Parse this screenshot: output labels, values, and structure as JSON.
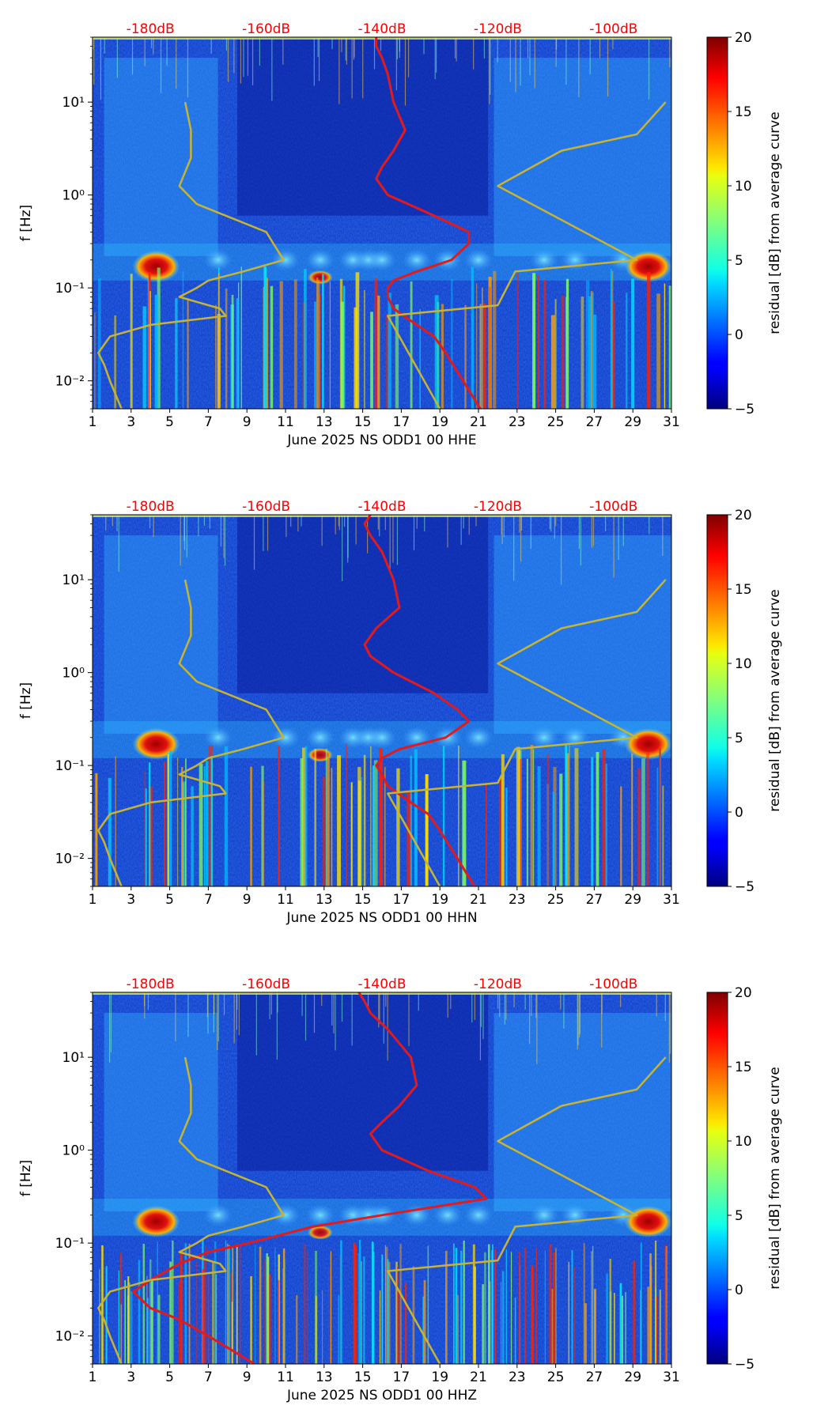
{
  "figure": {
    "colorbar": {
      "label": "residual [dB] from average curve",
      "range": [
        -5,
        20
      ],
      "ticks": [
        "20",
        "15",
        "10",
        "5",
        "0",
        "−5"
      ]
    },
    "top_axis_labels": [
      "-180dB",
      "-160dB",
      "-140dB",
      "-120dB",
      "-100dB"
    ],
    "colors": {
      "top_label": "#ff0000",
      "median_curve": "#e31a1c",
      "noise_model": "#c8b432",
      "background": "#1040d0"
    }
  },
  "chart_data": [
    {
      "type": "heatmap",
      "title": "",
      "xlabel": "June 2025 NS ODD1 00 HHE",
      "ylabel": "f [Hz]",
      "x_ticks": [
        "1",
        "3",
        "5",
        "7",
        "9",
        "11",
        "13",
        "15",
        "17",
        "19",
        "21",
        "23",
        "25",
        "27",
        "29",
        "31"
      ],
      "y_ticks": [
        "10⁻²",
        "10⁻¹",
        "10⁰",
        "10¹"
      ],
      "xlim": [
        1,
        31
      ],
      "ylim": [
        0.005,
        50
      ],
      "top_axis": {
        "label_range_db": [
          -190,
          -90
        ],
        "labels": [
          "-180dB",
          "-160dB",
          "-140dB",
          "-120dB",
          "-100dB"
        ]
      },
      "series": [
        {
          "name": "median PSD (dB)",
          "y_hz": [
            50,
            40,
            30,
            20,
            10,
            5,
            3,
            2,
            1.5,
            1,
            0.6,
            0.4,
            0.3,
            0.2,
            0.15,
            0.12,
            0.1,
            0.08,
            0.06,
            0.04,
            0.03,
            0.02,
            0.01,
            0.005
          ],
          "x": [
            -141,
            -141,
            -140,
            -139,
            -138,
            -136,
            -138,
            -140,
            -141,
            -139,
            -131,
            -125,
            -125,
            -128,
            -134,
            -138,
            -139,
            -139,
            -138,
            -134,
            -131,
            -129,
            -126,
            -123
          ]
        },
        {
          "name": "noise model (dB)",
          "y_hz": [
            10,
            5,
            2.5,
            1.25,
            0.8,
            0.4,
            0.2,
            0.15,
            0.12,
            0.1,
            0.08,
            0.06,
            0.05,
            0.04,
            0.03,
            0.02,
            0.015,
            0.01,
            0.005
          ],
          "x": [
            -174,
            -173,
            -173,
            -175,
            -172,
            -160,
            -157,
            -164,
            -170,
            -172,
            -175,
            -168,
            -167,
            -180,
            -187,
            -189,
            -188,
            -187,
            -185
          ]
        },
        {
          "name": "noise model high (dB)",
          "y_hz": [
            10,
            4.5,
            3,
            1.25,
            0.2,
            0.15,
            0.065,
            0.05,
            0.005
          ],
          "x": [
            -91,
            -96,
            -109,
            -120,
            -96,
            -117,
            -120,
            -139,
            -130
          ]
        }
      ]
    },
    {
      "type": "heatmap",
      "title": "",
      "xlabel": "June 2025 NS ODD1 00 HHN",
      "ylabel": "f [Hz]",
      "x_ticks": [
        "1",
        "3",
        "5",
        "7",
        "9",
        "11",
        "13",
        "15",
        "17",
        "19",
        "21",
        "23",
        "25",
        "27",
        "29",
        "31"
      ],
      "y_ticks": [
        "10⁻²",
        "10⁻¹",
        "10⁰",
        "10¹"
      ],
      "xlim": [
        1,
        31
      ],
      "ylim": [
        0.005,
        50
      ],
      "top_axis": {
        "label_range_db": [
          -190,
          -90
        ],
        "labels": [
          "-180dB",
          "-160dB",
          "-140dB",
          "-120dB",
          "-100dB"
        ]
      },
      "series": [
        {
          "name": "median PSD (dB)",
          "y_hz": [
            50,
            40,
            30,
            20,
            10,
            5,
            3,
            2,
            1.5,
            1,
            0.6,
            0.4,
            0.3,
            0.2,
            0.15,
            0.12,
            0.1,
            0.08,
            0.06,
            0.04,
            0.03,
            0.02,
            0.01,
            0.005
          ],
          "x": [
            -142,
            -143,
            -142,
            -140,
            -138,
            -137,
            -141,
            -143,
            -142,
            -138,
            -131,
            -127,
            -125,
            -129,
            -137,
            -140,
            -141,
            -140,
            -139,
            -135,
            -132,
            -130,
            -127,
            -124
          ]
        },
        {
          "name": "noise model (dB)",
          "y_hz": [
            10,
            5,
            2.5,
            1.25,
            0.8,
            0.4,
            0.2,
            0.15,
            0.12,
            0.1,
            0.08,
            0.06,
            0.05,
            0.04,
            0.03,
            0.02,
            0.015,
            0.01,
            0.005
          ],
          "x": [
            -174,
            -173,
            -173,
            -175,
            -172,
            -160,
            -157,
            -164,
            -170,
            -172,
            -175,
            -168,
            -167,
            -180,
            -187,
            -189,
            -188,
            -187,
            -185
          ]
        },
        {
          "name": "noise model high (dB)",
          "y_hz": [
            10,
            4.5,
            3,
            1.25,
            0.2,
            0.15,
            0.065,
            0.05,
            0.005
          ],
          "x": [
            -91,
            -96,
            -109,
            -120,
            -96,
            -117,
            -120,
            -139,
            -130
          ]
        }
      ]
    },
    {
      "type": "heatmap",
      "title": "",
      "xlabel": "June 2025 NS ODD1 00 HHZ",
      "ylabel": "f [Hz]",
      "x_ticks": [
        "1",
        "3",
        "5",
        "7",
        "9",
        "11",
        "13",
        "15",
        "17",
        "19",
        "21",
        "23",
        "25",
        "27",
        "29",
        "31"
      ],
      "y_ticks": [
        "10⁻²",
        "10⁻¹",
        "10⁰",
        "10¹"
      ],
      "xlim": [
        1,
        31
      ],
      "ylim": [
        0.005,
        50
      ],
      "top_axis": {
        "label_range_db": [
          -190,
          -90
        ],
        "labels": [
          "-180dB",
          "-160dB",
          "-140dB",
          "-120dB",
          "-100dB"
        ]
      },
      "series": [
        {
          "name": "median PSD (dB)",
          "y_hz": [
            50,
            40,
            30,
            20,
            10,
            5,
            3,
            2,
            1.5,
            1,
            0.6,
            0.4,
            0.3,
            0.2,
            0.15,
            0.12,
            0.1,
            0.08,
            0.06,
            0.04,
            0.03,
            0.02,
            0.015,
            0.01,
            0.005
          ],
          "x": [
            -144,
            -143,
            -142,
            -139,
            -135,
            -134,
            -137,
            -140,
            -142,
            -140,
            -132,
            -124,
            -122,
            -140,
            -152,
            -158,
            -163,
            -170,
            -175,
            -180,
            -183,
            -180,
            -175,
            -170,
            -162
          ]
        },
        {
          "name": "noise model (dB)",
          "y_hz": [
            10,
            5,
            2.5,
            1.25,
            0.8,
            0.4,
            0.2,
            0.15,
            0.12,
            0.1,
            0.08,
            0.06,
            0.05,
            0.04,
            0.03,
            0.02,
            0.015,
            0.01,
            0.005
          ],
          "x": [
            -174,
            -173,
            -173,
            -175,
            -172,
            -160,
            -157,
            -164,
            -170,
            -172,
            -175,
            -168,
            -167,
            -180,
            -187,
            -189,
            -188,
            -187,
            -185
          ]
        },
        {
          "name": "noise model high (dB)",
          "y_hz": [
            10,
            4.5,
            3,
            1.25,
            0.2,
            0.15,
            0.065,
            0.05,
            0.005
          ],
          "x": [
            -91,
            -96,
            -109,
            -120,
            -96,
            -117,
            -120,
            -139,
            -130
          ]
        }
      ]
    }
  ]
}
